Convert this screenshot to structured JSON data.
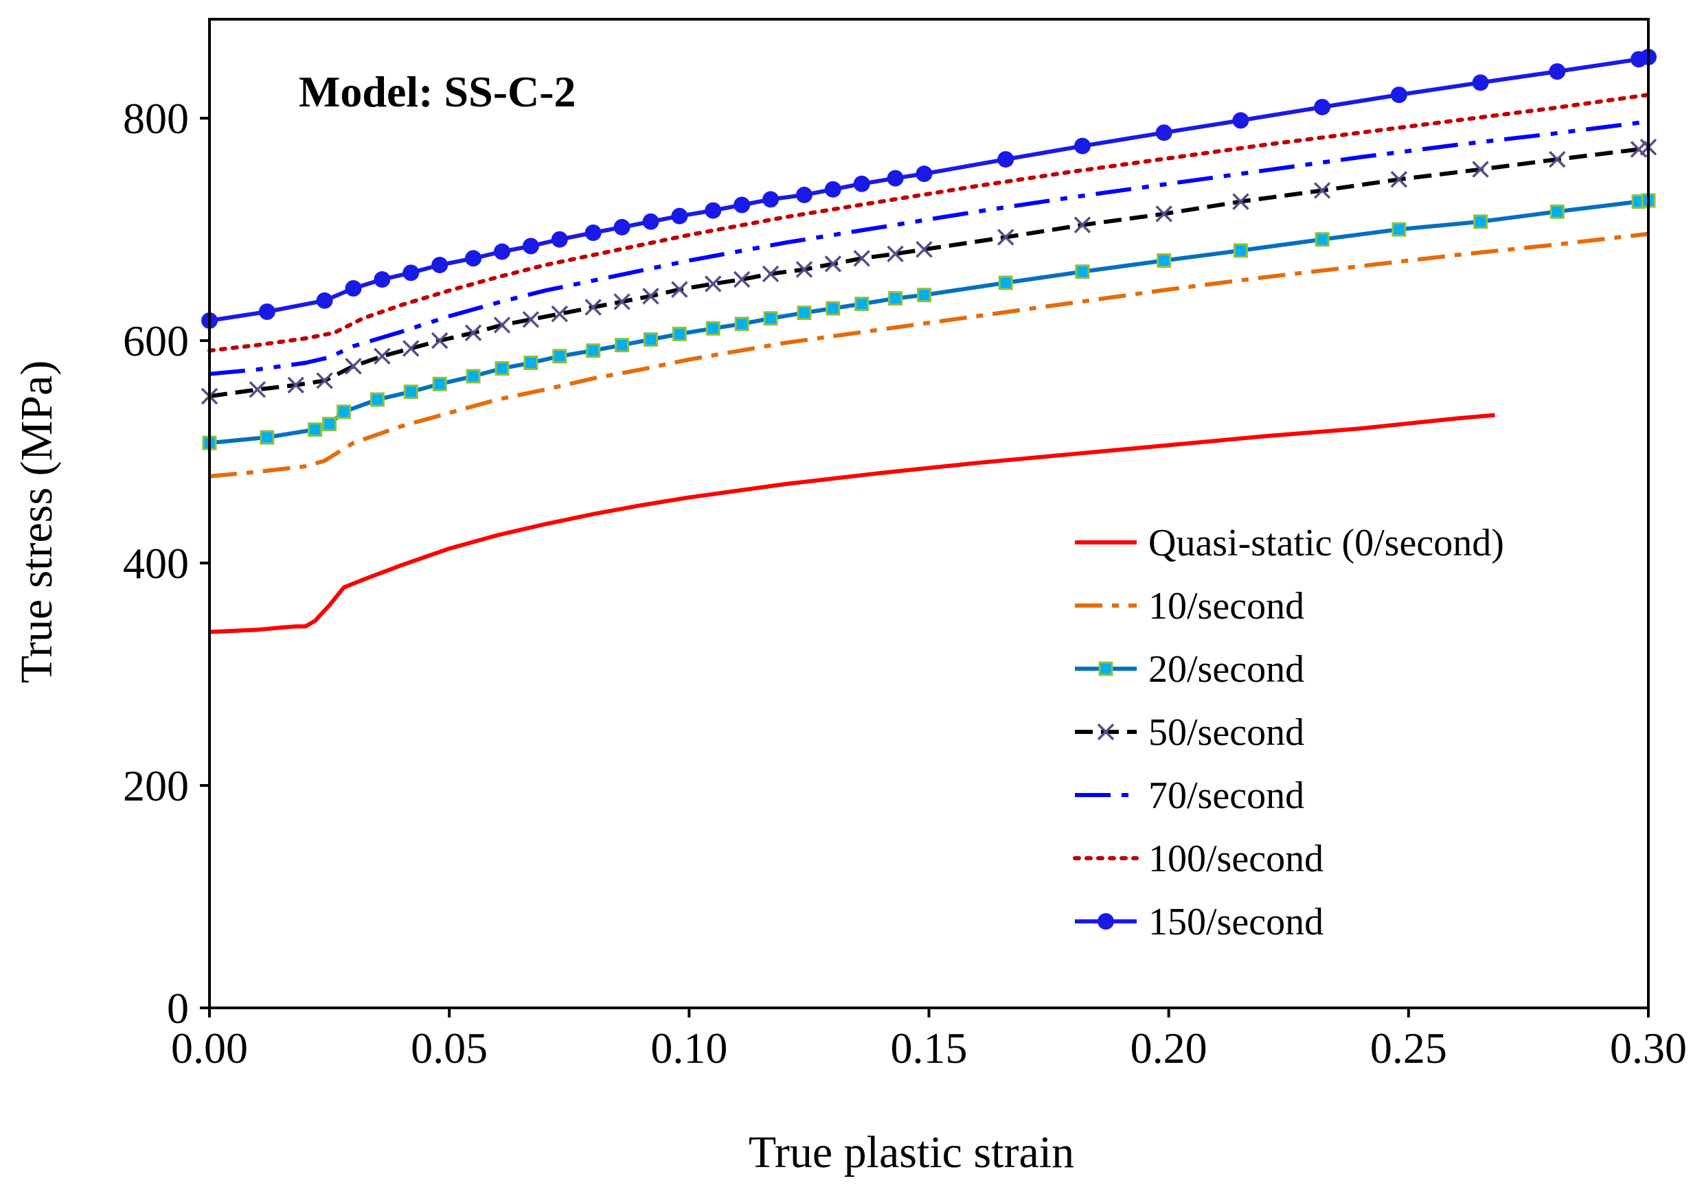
{
  "chart_data": {
    "type": "line",
    "title": "Model: SS-C-2",
    "xlabel": "True plastic strain",
    "ylabel": "True stress (MPa)",
    "xlim": [
      0,
      0.3
    ],
    "ylim": [
      0,
      900
    ],
    "x_ticks": [
      "0.00",
      "0.05",
      "0.10",
      "0.15",
      "0.20",
      "0.25",
      "0.30"
    ],
    "y_ticks": [
      "0",
      "200",
      "400",
      "600",
      "800"
    ],
    "grid": false,
    "legend_position": "center-right",
    "series": [
      {
        "name": "Quasi-static (0/second)",
        "color": "#ff0000",
        "dash": "solid",
        "marker": "none",
        "points": [
          [
            0,
            338
          ],
          [
            0.005,
            339
          ],
          [
            0.01,
            340
          ],
          [
            0.015,
            342
          ],
          [
            0.018,
            343
          ],
          [
            0.02,
            343
          ],
          [
            0.022,
            348
          ],
          [
            0.025,
            362
          ],
          [
            0.028,
            378
          ],
          [
            0.032,
            385
          ],
          [
            0.04,
            398
          ],
          [
            0.05,
            413
          ],
          [
            0.06,
            425
          ],
          [
            0.07,
            435
          ],
          [
            0.08,
            444
          ],
          [
            0.09,
            452
          ],
          [
            0.1,
            459
          ],
          [
            0.12,
            471
          ],
          [
            0.14,
            481
          ],
          [
            0.16,
            490
          ],
          [
            0.18,
            498
          ],
          [
            0.2,
            506
          ],
          [
            0.22,
            514
          ],
          [
            0.24,
            521
          ],
          [
            0.26,
            530
          ],
          [
            0.268,
            533
          ]
        ]
      },
      {
        "name": "10/second",
        "color": "#e46c0a",
        "dash": "dashdot",
        "marker": "none",
        "points": [
          [
            0,
            478
          ],
          [
            0.01,
            482
          ],
          [
            0.02,
            487
          ],
          [
            0.024,
            492
          ],
          [
            0.03,
            508
          ],
          [
            0.04,
            523
          ],
          [
            0.05,
            535
          ],
          [
            0.06,
            547
          ],
          [
            0.07,
            556
          ],
          [
            0.08,
            566
          ],
          [
            0.09,
            574
          ],
          [
            0.1,
            583
          ],
          [
            0.12,
            598
          ],
          [
            0.14,
            610
          ],
          [
            0.16,
            622
          ],
          [
            0.18,
            634
          ],
          [
            0.2,
            646
          ],
          [
            0.22,
            657
          ],
          [
            0.24,
            667
          ],
          [
            0.26,
            677
          ],
          [
            0.28,
            686
          ],
          [
            0.3,
            696
          ]
        ]
      },
      {
        "name": "20/second",
        "color": "#0070c0",
        "dash": "solid",
        "marker": "square",
        "marker_color": "#00b0f0",
        "points": [
          [
            0,
            508
          ],
          [
            0.012,
            513
          ],
          [
            0.022,
            520
          ],
          [
            0.025,
            525
          ],
          [
            0.028,
            536
          ],
          [
            0.035,
            547
          ],
          [
            0.042,
            554
          ],
          [
            0.048,
            561
          ],
          [
            0.055,
            568
          ],
          [
            0.061,
            575
          ],
          [
            0.067,
            580
          ],
          [
            0.073,
            586
          ],
          [
            0.08,
            591
          ],
          [
            0.086,
            596
          ],
          [
            0.092,
            601
          ],
          [
            0.098,
            606
          ],
          [
            0.105,
            611
          ],
          [
            0.111,
            615
          ],
          [
            0.117,
            620
          ],
          [
            0.124,
            625
          ],
          [
            0.13,
            629
          ],
          [
            0.136,
            633
          ],
          [
            0.143,
            638
          ],
          [
            0.149,
            641
          ],
          [
            0.166,
            652
          ],
          [
            0.182,
            662
          ],
          [
            0.199,
            672
          ],
          [
            0.215,
            681
          ],
          [
            0.232,
            691
          ],
          [
            0.248,
            700
          ],
          [
            0.265,
            707
          ],
          [
            0.281,
            716
          ],
          [
            0.298,
            725
          ],
          [
            0.3,
            726
          ]
        ]
      },
      {
        "name": "50/second",
        "color": "#000000",
        "dash": "dash",
        "marker": "x",
        "marker_color": "#5b4a8a",
        "points": [
          [
            0,
            550
          ],
          [
            0.01,
            556
          ],
          [
            0.018,
            560
          ],
          [
            0.024,
            564
          ],
          [
            0.03,
            577
          ],
          [
            0.036,
            586
          ],
          [
            0.042,
            593
          ],
          [
            0.048,
            600
          ],
          [
            0.055,
            607
          ],
          [
            0.061,
            614
          ],
          [
            0.067,
            619
          ],
          [
            0.073,
            624
          ],
          [
            0.08,
            630
          ],
          [
            0.086,
            635
          ],
          [
            0.092,
            640
          ],
          [
            0.098,
            646
          ],
          [
            0.105,
            651
          ],
          [
            0.111,
            655
          ],
          [
            0.117,
            660
          ],
          [
            0.124,
            664
          ],
          [
            0.13,
            669
          ],
          [
            0.136,
            674
          ],
          [
            0.143,
            678
          ],
          [
            0.149,
            682
          ],
          [
            0.166,
            693
          ],
          [
            0.182,
            704
          ],
          [
            0.199,
            714
          ],
          [
            0.215,
            725
          ],
          [
            0.232,
            735
          ],
          [
            0.248,
            745
          ],
          [
            0.265,
            754
          ],
          [
            0.281,
            763
          ],
          [
            0.298,
            772
          ],
          [
            0.3,
            774
          ]
        ]
      },
      {
        "name": "70/second",
        "color": "#0000ff",
        "dash": "dashdotdot",
        "marker": "none",
        "points": [
          [
            0,
            570
          ],
          [
            0.01,
            574
          ],
          [
            0.02,
            580
          ],
          [
            0.025,
            585
          ],
          [
            0.03,
            595
          ],
          [
            0.04,
            608
          ],
          [
            0.05,
            622
          ],
          [
            0.06,
            634
          ],
          [
            0.07,
            645
          ],
          [
            0.08,
            654
          ],
          [
            0.09,
            663
          ],
          [
            0.1,
            672
          ],
          [
            0.12,
            688
          ],
          [
            0.14,
            702
          ],
          [
            0.16,
            716
          ],
          [
            0.18,
            729
          ],
          [
            0.2,
            741
          ],
          [
            0.22,
            753
          ],
          [
            0.24,
            765
          ],
          [
            0.26,
            776
          ],
          [
            0.28,
            786
          ],
          [
            0.3,
            797
          ]
        ]
      },
      {
        "name": "100/second",
        "color": "#c00000",
        "dash": "dot",
        "marker": "none",
        "points": [
          [
            0,
            591
          ],
          [
            0.01,
            596
          ],
          [
            0.02,
            602
          ],
          [
            0.026,
            607
          ],
          [
            0.032,
            620
          ],
          [
            0.04,
            632
          ],
          [
            0.05,
            645
          ],
          [
            0.06,
            657
          ],
          [
            0.07,
            668
          ],
          [
            0.08,
            677
          ],
          [
            0.09,
            686
          ],
          [
            0.1,
            695
          ],
          [
            0.12,
            711
          ],
          [
            0.14,
            725
          ],
          [
            0.16,
            739
          ],
          [
            0.18,
            752
          ],
          [
            0.2,
            764
          ],
          [
            0.22,
            776
          ],
          [
            0.24,
            787
          ],
          [
            0.26,
            798
          ],
          [
            0.28,
            809
          ],
          [
            0.3,
            821
          ]
        ]
      },
      {
        "name": "150/second",
        "color": "#1a1ae6",
        "dash": "solid",
        "marker": "circle",
        "marker_color": "#1a1ae6",
        "points": [
          [
            0,
            618
          ],
          [
            0.012,
            626
          ],
          [
            0.024,
            636
          ],
          [
            0.03,
            647
          ],
          [
            0.036,
            655
          ],
          [
            0.042,
            661
          ],
          [
            0.048,
            668
          ],
          [
            0.055,
            674
          ],
          [
            0.061,
            680
          ],
          [
            0.067,
            685
          ],
          [
            0.073,
            691
          ],
          [
            0.08,
            697
          ],
          [
            0.086,
            702
          ],
          [
            0.092,
            707
          ],
          [
            0.098,
            712
          ],
          [
            0.105,
            717
          ],
          [
            0.111,
            722
          ],
          [
            0.117,
            727
          ],
          [
            0.124,
            731
          ],
          [
            0.13,
            736
          ],
          [
            0.136,
            741
          ],
          [
            0.143,
            746
          ],
          [
            0.149,
            750
          ],
          [
            0.166,
            763
          ],
          [
            0.182,
            775
          ],
          [
            0.199,
            787
          ],
          [
            0.215,
            798
          ],
          [
            0.232,
            810
          ],
          [
            0.248,
            821
          ],
          [
            0.265,
            832
          ],
          [
            0.281,
            842
          ],
          [
            0.298,
            853
          ],
          [
            0.3,
            855
          ]
        ]
      }
    ]
  }
}
